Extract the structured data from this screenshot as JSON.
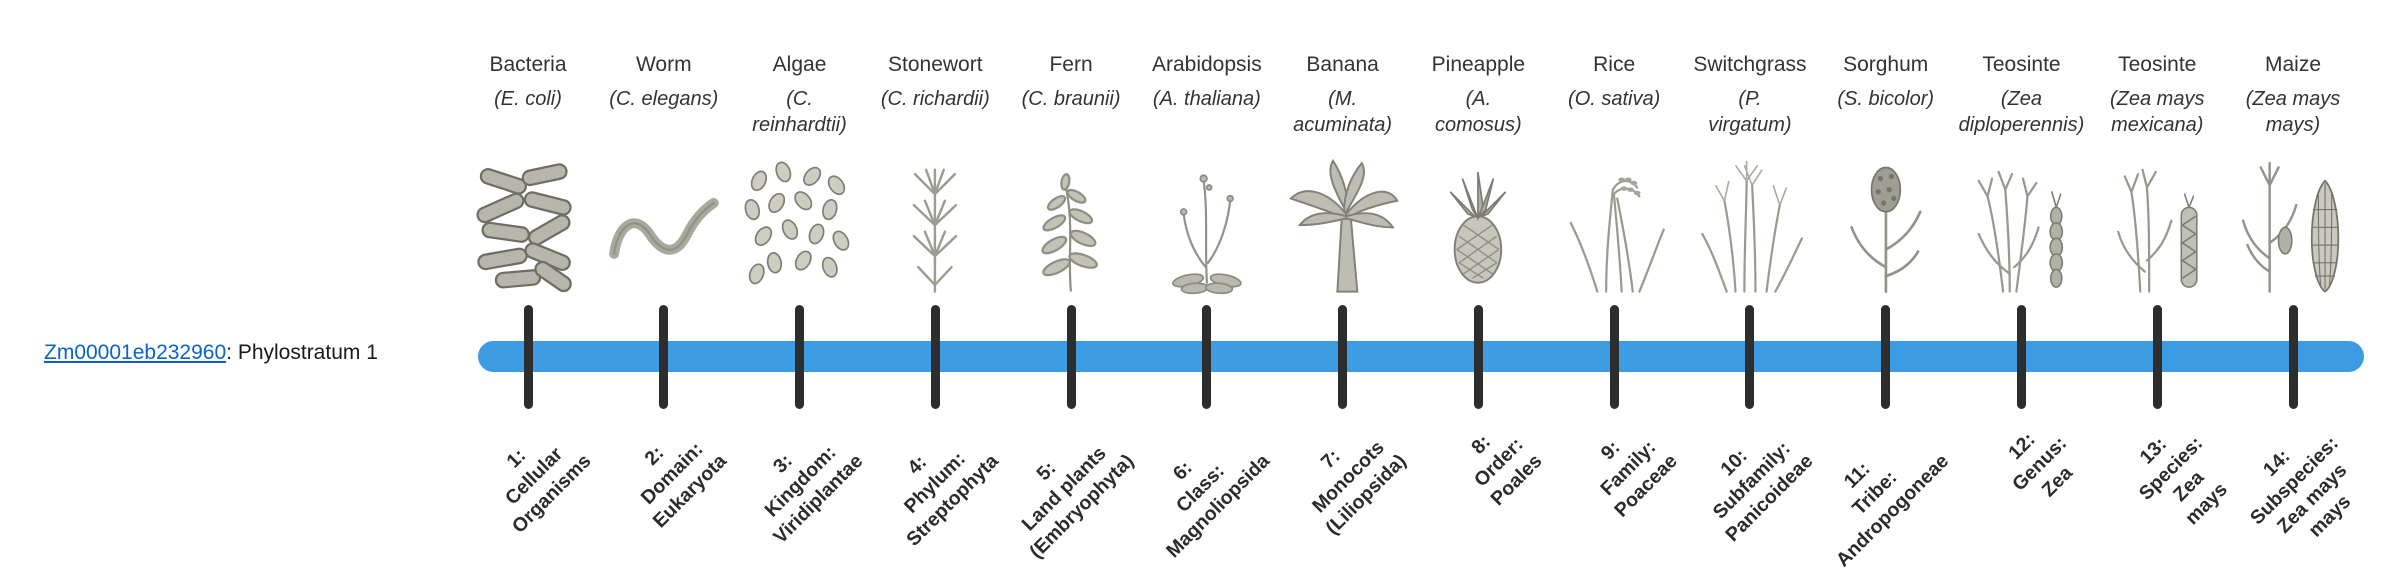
{
  "gene": {
    "id": "Zm00001eb232960",
    "suffix": ": Phylostratum 1"
  },
  "timeline": {
    "bar_color": "#3d9ce1",
    "tick_color": "#2d2d2d"
  },
  "columns": [
    {
      "name": "Bacteria",
      "scientific": "(E. coli)",
      "icon": "bacteria-icon",
      "stratum_lines": [
        "1:",
        "Cellular",
        "Organisms"
      ]
    },
    {
      "name": "Worm",
      "scientific": "(C. elegans)",
      "icon": "worm-icon",
      "stratum_lines": [
        "2:",
        "Domain:",
        "Eukaryota"
      ]
    },
    {
      "name": "Algae",
      "scientific": "(C.\nreinhardtii)",
      "icon": "algae-icon",
      "stratum_lines": [
        "3:",
        "Kingdom:",
        "Viridiplantae"
      ]
    },
    {
      "name": "Stonewort",
      "scientific": "(C. richardii)",
      "icon": "stonewort-icon",
      "stratum_lines": [
        "4:",
        "Phylum:",
        "Streptophyta"
      ]
    },
    {
      "name": "Fern",
      "scientific": "(C. braunii)",
      "icon": "fern-icon",
      "stratum_lines": [
        "5:",
        "Land plants",
        "(Embryophyta)"
      ]
    },
    {
      "name": "Arabidopsis",
      "scientific": "(A. thaliana)",
      "icon": "arabidopsis-icon",
      "stratum_lines": [
        "6:",
        "Class:",
        "Magnoliopsida"
      ]
    },
    {
      "name": "Banana",
      "scientific": "(M.\nacuminata)",
      "icon": "banana-icon",
      "stratum_lines": [
        "7:",
        "Monocots",
        "(Liliopsida)"
      ]
    },
    {
      "name": "Pineapple",
      "scientific": "(A.\ncomosus)",
      "icon": "pineapple-icon",
      "stratum_lines": [
        "8:",
        "Order:",
        "Poales"
      ]
    },
    {
      "name": "Rice",
      "scientific": "(O. sativa)",
      "icon": "rice-icon",
      "stratum_lines": [
        "9:",
        "Family:",
        "Poaceae"
      ]
    },
    {
      "name": "Switchgrass",
      "scientific": "(P.\nvirgatum)",
      "icon": "switchgrass-icon",
      "stratum_lines": [
        "10:",
        "Subfamily:",
        "Panicoideae"
      ]
    },
    {
      "name": "Sorghum",
      "scientific": "(S. bicolor)",
      "icon": "sorghum-icon",
      "stratum_lines": [
        "11:",
        "Tribe:",
        "Andropogoneae"
      ]
    },
    {
      "name": "Teosinte",
      "scientific": "(Zea\ndiploperennis)",
      "icon": "teosinte-icon",
      "stratum_lines": [
        "12:",
        "Genus:",
        "Zea"
      ]
    },
    {
      "name": "Teosinte",
      "scientific": "(Zea mays\nmexicana)",
      "icon": "teosinte2-icon",
      "stratum_lines": [
        "13:",
        "Species:",
        "Zea",
        "mays"
      ]
    },
    {
      "name": "Maize",
      "scientific": "(Zea mays\nmays)",
      "icon": "maize-icon",
      "stratum_lines": [
        "14:",
        "Subspecies:",
        "Zea mays",
        "mays"
      ]
    }
  ]
}
